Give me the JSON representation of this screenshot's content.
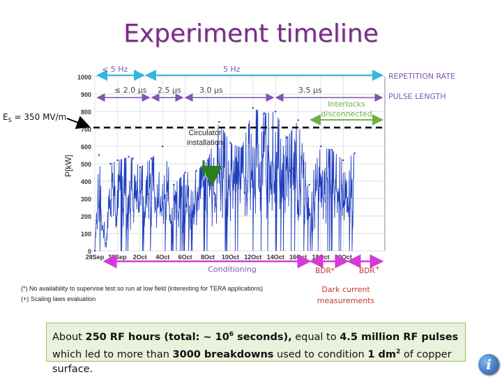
{
  "page_title": "Experiment timeline",
  "chart_data": {
    "type": "line",
    "ylabel": "P[kW]",
    "xlabel": "",
    "ylim": [
      0,
      1000
    ],
    "yticks": [
      0,
      100,
      200,
      300,
      400,
      500,
      600,
      700,
      800,
      900,
      1000
    ],
    "xticks": [
      "28Sep",
      "30Sep",
      "2Oct",
      "4Oct",
      "6Oct",
      "8Oct",
      "10Oct",
      "12Oct",
      "14Oct",
      "16Oct",
      "18Oct",
      "20Oct"
    ],
    "series": [
      {
        "color": "#1f3fbf",
        "x": [
          "28Sep",
          "28Sep",
          "29Sep",
          "29Sep",
          "30Sep",
          "1Oct",
          "1Oct",
          "2Oct",
          "3Oct",
          "4Oct",
          "5Oct",
          "6Oct",
          "7Oct",
          "8Oct",
          "9Oct",
          "10Oct",
          "11Oct",
          "12Oct",
          "13Oct",
          "14Oct",
          "15Oct",
          "16Oct",
          "17Oct",
          "18Oct",
          "19Oct",
          "20Oct",
          "21Oct"
        ],
        "values": [
          0,
          550,
          40,
          500,
          520,
          540,
          530,
          480,
          530,
          600,
          380,
          450,
          460,
          520,
          740,
          620,
          590,
          820,
          790,
          800,
          650,
          750,
          380,
          600,
          580,
          520,
          560
        ]
      }
    ]
  },
  "annotations": {
    "es_label": "E",
    "es_sub": "S",
    "es_value": " = 350 MV/m",
    "rep_lt5": "< 5 Hz",
    "rep_5": "5 Hz",
    "repetition_rate": "REPETITION RATE",
    "pulse_20": "≤ 2.0 μs",
    "pulse_25": "2.5 μs",
    "pulse_30": "3.0 μs",
    "pulse_35": "3.5 μs",
    "pulse_length": "PULSE LENGTH",
    "interlocks_1": "Interlocks",
    "interlocks_2": "disconnected",
    "circulator_1": "Circulator",
    "circulator_2": "installation",
    "conditioning": "Conditioning",
    "bdr_star": "BDR*",
    "bdr_plus": "BDR",
    "bdr_plus_sup": "+",
    "dark_1": "Dark current",
    "dark_2": "measurements"
  },
  "colors": {
    "title": "#7b2d8b",
    "cyan": "#2fb8e0",
    "purple": "#7e56b2",
    "green": "#70ad47",
    "magenta": "#d63ad6",
    "red": "#c0392b",
    "data": "#1f3fbf"
  },
  "footnotes": {
    "star": "(*) No availability to supervise test so run at low field (interesting for TERA applications)",
    "plus": "(+) Scaling laws evaluation"
  },
  "summary": {
    "p1": "About ",
    "b1": "250 RF hours (total: ~ 10",
    "b1_sup": "6",
    "b1_end": " seconds),",
    "p2": " equal to ",
    "b2": "4.5 million RF pulses",
    "p3": " which led to more than ",
    "b3": "3000 breakdowns",
    "p4": " used to condition ",
    "b4": "1 dm",
    "b4_sup": "2",
    "p5": " of copper surface."
  },
  "info_icon": "i"
}
